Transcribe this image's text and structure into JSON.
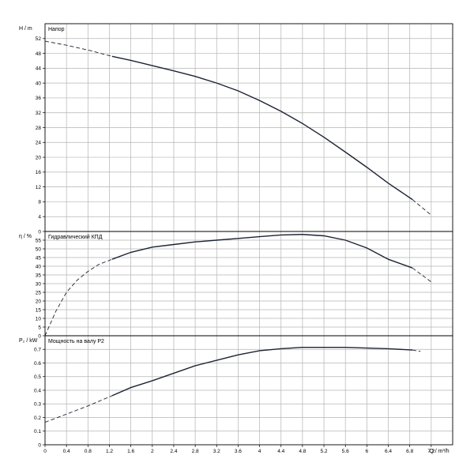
{
  "chart_data": {
    "type": "line",
    "x_axis": {
      "label": "Q / m³/h",
      "range": [
        0,
        7.6
      ],
      "ticks": [
        "0",
        "0.4",
        "0.8",
        "1.2",
        "1.6",
        "2",
        "2.4",
        "2.8",
        "3.2",
        "3.6",
        "4",
        "4.4",
        "4.8",
        "5.2",
        "5.6",
        "6",
        "6.4",
        "6.8",
        "7.2"
      ]
    },
    "grid": true,
    "panels": [
      {
        "title": "Напор",
        "ylabel": "H / m",
        "ylim": [
          0,
          56
        ],
        "ticks": [
          "0",
          "4",
          "8",
          "12",
          "16",
          "20",
          "24",
          "28",
          "32",
          "36",
          "40",
          "44",
          "48",
          "52"
        ],
        "series": [
          {
            "style": "dashed",
            "x": [
              0,
              0.4,
              0.8,
              1.25
            ],
            "y": [
              51.3,
              50.2,
              48.9,
              47.2
            ]
          },
          {
            "style": "solid",
            "x": [
              1.25,
              1.6,
              2.0,
              2.4,
              2.8,
              3.2,
              3.6,
              4.0,
              4.4,
              4.8,
              5.2,
              5.6,
              6.0,
              6.4,
              6.85
            ],
            "y": [
              47.2,
              46.1,
              44.7,
              43.3,
              41.8,
              40.0,
              37.9,
              35.3,
              32.4,
              29.1,
              25.4,
              21.4,
              17.3,
              13.0,
              8.6
            ]
          },
          {
            "style": "dashed",
            "x": [
              6.85,
              7.2
            ],
            "y": [
              8.6,
              4.4
            ]
          }
        ]
      },
      {
        "title": "Гидравлический КПД",
        "ylabel": "η / %",
        "ylim": [
          0,
          60
        ],
        "ticks": [
          "0",
          "5",
          "10",
          "15",
          "20",
          "25",
          "30",
          "35",
          "40",
          "45",
          "50",
          "55"
        ],
        "series": [
          {
            "style": "dashed",
            "x": [
              0,
              0.2,
              0.4,
              0.6,
              0.8,
              1.0,
              1.25
            ],
            "y": [
              0,
              14,
              25,
              32,
              37,
              41,
              44
            ]
          },
          {
            "style": "solid",
            "x": [
              1.25,
              1.6,
              2.0,
              2.4,
              2.8,
              3.2,
              3.6,
              4.0,
              4.4,
              4.8,
              5.2,
              5.6,
              6.0,
              6.4,
              6.85
            ],
            "y": [
              44,
              48,
              51,
              52.5,
              54,
              55,
              56,
              57,
              58,
              58.3,
              57.5,
              55,
              50.5,
              44,
              39
            ]
          },
          {
            "style": "dashed",
            "x": [
              6.85,
              7.2
            ],
            "y": [
              39,
              31
            ]
          }
        ]
      },
      {
        "title": "Мощность на валу P2",
        "ylabel": "P₂ / kW",
        "ylim": [
          0,
          0.8
        ],
        "ticks": [
          "0",
          "0.1",
          "0.2",
          "0.3",
          "0.4",
          "0.5",
          "0.6",
          "0.7"
        ],
        "series": [
          {
            "style": "dashed",
            "x": [
              0,
              0.4,
              0.8,
              1.25
            ],
            "y": [
              0.165,
              0.225,
              0.285,
              0.36
            ]
          },
          {
            "style": "solid",
            "x": [
              1.25,
              1.6,
              2.0,
              2.4,
              2.8,
              3.2,
              3.6,
              4.0,
              4.4,
              4.8,
              5.2,
              5.6,
              6.0,
              6.4,
              6.85
            ],
            "y": [
              0.36,
              0.42,
              0.47,
              0.525,
              0.58,
              0.62,
              0.66,
              0.69,
              0.705,
              0.715,
              0.715,
              0.715,
              0.71,
              0.705,
              0.695
            ]
          },
          {
            "style": "dashed",
            "x": [
              6.85,
              7.0
            ],
            "y": [
              0.695,
              0.685
            ]
          }
        ]
      }
    ]
  }
}
